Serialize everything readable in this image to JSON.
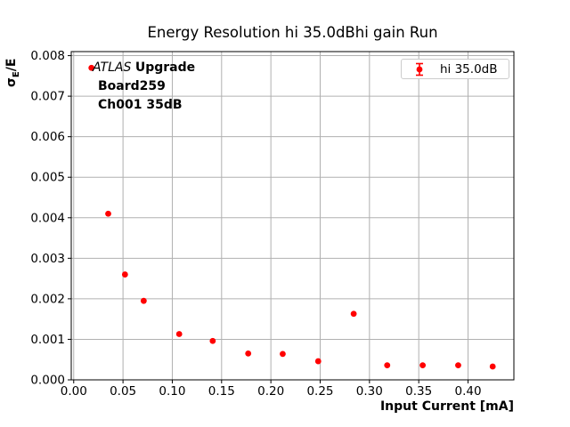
{
  "figure": {
    "title": "Energy Resolution hi 35.0dBhi gain Run"
  },
  "axes": {
    "xlabel": "Input Current [mA]",
    "ylabel_sigma": "σ",
    "ylabel_sub": "E",
    "ylabel_rest": "/E",
    "xtick_labels": [
      "0.00",
      "0.05",
      "0.10",
      "0.15",
      "0.20",
      "0.25",
      "0.30",
      "0.35",
      "0.40"
    ],
    "ytick_labels": [
      "0.000",
      "0.001",
      "0.002",
      "0.003",
      "0.004",
      "0.005",
      "0.006",
      "0.007",
      "0.008"
    ]
  },
  "annotation": {
    "experiment": "ATLAS",
    "experiment_suffix": "Upgrade",
    "board": "Board259",
    "channel": "Ch001 35dB"
  },
  "legend": {
    "entry_label": "hi 35.0dB"
  },
  "colors": {
    "marker_red": "#ff0000",
    "grid": "#b0b0b0",
    "spine": "#000000",
    "legend_border": "#cccccc"
  },
  "chart_data": {
    "type": "scatter",
    "title": "Energy Resolution hi 35.0dBhi gain Run",
    "xlabel": "Input Current [mA]",
    "ylabel": "σ_E/E",
    "grid": true,
    "legend_position": "upper right",
    "xlim": [
      -0.0025,
      0.4465
    ],
    "ylim": [
      0,
      0.0081
    ],
    "xticks": [
      0,
      0.05,
      0.1,
      0.15,
      0.2,
      0.25,
      0.3,
      0.35,
      0.4
    ],
    "yticks": [
      0,
      0.001,
      0.002,
      0.003,
      0.004,
      0.005,
      0.006,
      0.007,
      0.008
    ],
    "series": [
      {
        "name": "hi 35.0dB",
        "color": "#ff0000",
        "marker": "circle-with-errorbar",
        "points": [
          [
            0.018,
            0.0077
          ],
          [
            0.035,
            0.0041
          ],
          [
            0.052,
            0.0026
          ],
          [
            0.071,
            0.00195
          ],
          [
            0.107,
            0.00113
          ],
          [
            0.141,
            0.00096
          ],
          [
            0.177,
            0.00065
          ],
          [
            0.212,
            0.00064
          ],
          [
            0.248,
            0.00046
          ],
          [
            0.284,
            0.00163
          ],
          [
            0.318,
            0.00036
          ],
          [
            0.354,
            0.00036
          ],
          [
            0.39,
            0.00036
          ],
          [
            0.425,
            0.00033
          ]
        ]
      }
    ]
  }
}
